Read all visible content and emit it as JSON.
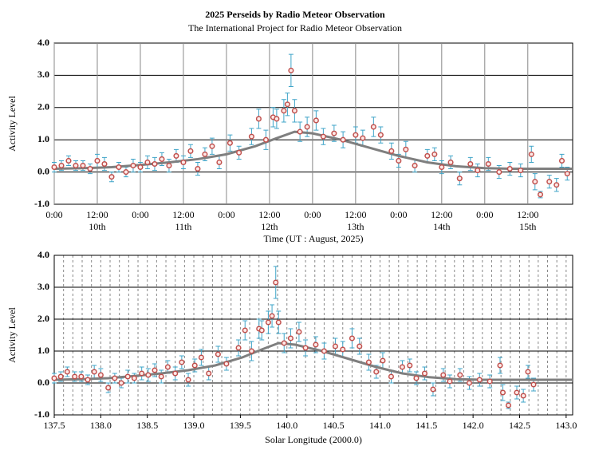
{
  "chart_data": [
    {
      "type": "scatter",
      "title": "2025 Perseids by Radio Meteor Observation",
      "subtitle": "The International Project for Radio Meteor Observation",
      "xlabel": "Time (UT : August, 2025)",
      "ylabel": "Activity Level",
      "xlim": [
        0,
        144.5
      ],
      "ylim": [
        -1,
        4
      ],
      "xticks": [
        {
          "value": 0,
          "label": "0:00"
        },
        {
          "value": 12,
          "label": "12:00"
        },
        {
          "value": 24,
          "label": "0:00"
        },
        {
          "value": 36,
          "label": "12:00"
        },
        {
          "value": 48,
          "label": "0:00"
        },
        {
          "value": 60,
          "label": "12:00"
        },
        {
          "value": 72,
          "label": "0:00"
        },
        {
          "value": 84,
          "label": "12:00"
        },
        {
          "value": 96,
          "label": "0:00"
        },
        {
          "value": 108,
          "label": "12:00"
        },
        {
          "value": 120,
          "label": "0:00"
        },
        {
          "value": 132,
          "label": "12:00"
        }
      ],
      "day_labels": [
        {
          "value": 12,
          "label": "10th"
        },
        {
          "value": 36,
          "label": "11th"
        },
        {
          "value": 60,
          "label": "12th"
        },
        {
          "value": 84,
          "label": "13th"
        },
        {
          "value": 108,
          "label": "14th"
        },
        {
          "value": 132,
          "label": "15th"
        }
      ],
      "yticks": [
        {
          "value": -1,
          "label": "-1.0"
        },
        {
          "value": 0,
          "label": "0.0"
        },
        {
          "value": 1,
          "label": "1.0"
        },
        {
          "value": 2,
          "label": "2.0"
        },
        {
          "value": 3,
          "label": "3.0"
        },
        {
          "value": 4,
          "label": "4.0"
        }
      ],
      "grid": true,
      "points": {
        "color": "#c0504d",
        "error_color": "#3fa4c8",
        "x": [
          0,
          2,
          4,
          6,
          8,
          10,
          12,
          14,
          16,
          18,
          20,
          22,
          24,
          26,
          28,
          30,
          32,
          34,
          36,
          38,
          40,
          42,
          44,
          46,
          49,
          51.5,
          55,
          57,
          59,
          61,
          62,
          64,
          65,
          66,
          67,
          68.5,
          70.5,
          73,
          75,
          78,
          80.5,
          84,
          86,
          89,
          91,
          94,
          96,
          98,
          100.5,
          104,
          106,
          108,
          110.5,
          113,
          116,
          118,
          121,
          124,
          127,
          130,
          133,
          134,
          135.5,
          138,
          140,
          141.5,
          143
        ],
        "values": [
          0.15,
          0.2,
          0.35,
          0.2,
          0.2,
          0.1,
          0.35,
          0.25,
          -0.15,
          0.15,
          0.0,
          0.2,
          0.15,
          0.3,
          0.25,
          0.4,
          0.2,
          0.5,
          0.3,
          0.65,
          0.1,
          0.55,
          0.8,
          0.3,
          0.9,
          0.6,
          1.1,
          1.65,
          1.0,
          1.7,
          1.65,
          1.9,
          2.1,
          3.15,
          1.9,
          1.25,
          1.4,
          1.6,
          1.1,
          1.2,
          1.0,
          1.15,
          1.05,
          1.4,
          1.15,
          0.65,
          0.35,
          0.7,
          0.2,
          0.5,
          0.55,
          0.15,
          0.3,
          -0.2,
          0.25,
          0.05,
          0.25,
          0.0,
          0.1,
          0.05,
          0.55,
          -0.3,
          -0.7,
          -0.3,
          -0.4,
          0.35,
          -0.05
        ],
        "errors": [
          0.15,
          0.15,
          0.15,
          0.15,
          0.15,
          0.15,
          0.2,
          0.2,
          0.15,
          0.15,
          0.15,
          0.2,
          0.15,
          0.2,
          0.2,
          0.2,
          0.2,
          0.2,
          0.2,
          0.2,
          0.2,
          0.2,
          0.25,
          0.2,
          0.25,
          0.2,
          0.25,
          0.3,
          0.3,
          0.3,
          0.3,
          0.35,
          0.35,
          0.5,
          0.35,
          0.3,
          0.3,
          0.3,
          0.25,
          0.25,
          0.25,
          0.25,
          0.25,
          0.3,
          0.25,
          0.25,
          0.2,
          0.25,
          0.2,
          0.2,
          0.2,
          0.2,
          0.2,
          0.2,
          0.2,
          0.2,
          0.2,
          0.2,
          0.2,
          0.2,
          0.25,
          0.25,
          0.1,
          0.2,
          0.2,
          0.2,
          0.2
        ]
      },
      "fit": {
        "color": "#7f7f7f",
        "x": [
          0,
          8,
          16,
          24,
          32,
          40,
          48,
          56,
          62,
          67,
          72,
          80,
          88,
          96,
          104,
          112,
          120,
          128,
          144.5
        ],
        "values": [
          0.1,
          0.12,
          0.15,
          0.22,
          0.3,
          0.4,
          0.55,
          0.8,
          1.05,
          1.25,
          1.2,
          1.0,
          0.75,
          0.5,
          0.3,
          0.18,
          0.12,
          0.1,
          0.1
        ]
      }
    },
    {
      "type": "scatter",
      "xlabel": "Solar Longitude (2000.0)",
      "ylabel": "Activity Level",
      "xlim": [
        137.5,
        143.07
      ],
      "ylim": [
        -1,
        4
      ],
      "xticks": [
        137.5,
        {
          "value": 138,
          "label": "138.0"
        },
        138.5,
        {
          "value": 139,
          "label": "139.0"
        },
        139.5,
        {
          "value": 140,
          "label": "140.0"
        },
        140.5,
        {
          "value": 141,
          "label": "141.0"
        },
        141.5,
        {
          "value": 142,
          "label": "142.0"
        },
        142.5,
        {
          "value": 143,
          "label": "143.0"
        }
      ],
      "yticks": [
        {
          "value": -1,
          "label": "-1.0"
        },
        {
          "value": 0,
          "label": "0.0"
        },
        {
          "value": 1,
          "label": "1.0"
        },
        {
          "value": 2,
          "label": "2.0"
        },
        {
          "value": 3,
          "label": "3.0"
        },
        {
          "value": 4,
          "label": "4.0"
        }
      ],
      "grid": true,
      "minor_xgrid_step": 0.1,
      "points": {
        "color": "#c0504d",
        "error_color": "#3fa4c8",
        "x": [
          137.5,
          137.57,
          137.64,
          137.72,
          137.79,
          137.86,
          137.93,
          138.0,
          138.08,
          138.15,
          138.22,
          138.29,
          138.36,
          138.44,
          138.51,
          138.58,
          138.65,
          138.72,
          138.8,
          138.87,
          138.94,
          139.01,
          139.08,
          139.16,
          139.26,
          139.35,
          139.48,
          139.55,
          139.62,
          139.7,
          139.73,
          139.8,
          139.84,
          139.88,
          139.91,
          139.97,
          140.04,
          140.13,
          140.2,
          140.31,
          140.4,
          140.52,
          140.6,
          140.7,
          140.78,
          140.88,
          140.96,
          141.03,
          141.12,
          141.24,
          141.32,
          141.39,
          141.48,
          141.57,
          141.68,
          141.75,
          141.86,
          141.96,
          142.07,
          142.18,
          142.29,
          142.32,
          142.38,
          142.47,
          142.54,
          142.59,
          142.65
        ],
        "values": [
          0.15,
          0.2,
          0.35,
          0.2,
          0.2,
          0.1,
          0.35,
          0.25,
          -0.15,
          0.15,
          0.0,
          0.2,
          0.15,
          0.3,
          0.25,
          0.4,
          0.2,
          0.5,
          0.3,
          0.65,
          0.1,
          0.55,
          0.8,
          0.3,
          0.9,
          0.6,
          1.1,
          1.65,
          1.0,
          1.7,
          1.65,
          1.9,
          2.1,
          3.15,
          1.9,
          1.25,
          1.4,
          1.6,
          1.1,
          1.2,
          1.0,
          1.15,
          1.05,
          1.4,
          1.15,
          0.65,
          0.35,
          0.7,
          0.2,
          0.5,
          0.55,
          0.15,
          0.3,
          -0.2,
          0.25,
          0.05,
          0.25,
          0.0,
          0.1,
          0.05,
          0.55,
          -0.3,
          -0.7,
          -0.3,
          -0.4,
          0.35,
          -0.05
        ],
        "errors": [
          0.15,
          0.15,
          0.15,
          0.15,
          0.15,
          0.15,
          0.2,
          0.2,
          0.15,
          0.15,
          0.15,
          0.2,
          0.15,
          0.2,
          0.2,
          0.2,
          0.2,
          0.2,
          0.2,
          0.2,
          0.2,
          0.2,
          0.25,
          0.2,
          0.25,
          0.2,
          0.25,
          0.3,
          0.3,
          0.3,
          0.3,
          0.35,
          0.35,
          0.5,
          0.35,
          0.3,
          0.3,
          0.3,
          0.25,
          0.25,
          0.25,
          0.25,
          0.25,
          0.3,
          0.25,
          0.25,
          0.2,
          0.25,
          0.2,
          0.2,
          0.2,
          0.2,
          0.2,
          0.2,
          0.2,
          0.2,
          0.2,
          0.2,
          0.2,
          0.2,
          0.25,
          0.25,
          0.1,
          0.2,
          0.2,
          0.2,
          0.2
        ]
      },
      "fit": {
        "color": "#7f7f7f",
        "x": [
          137.5,
          137.79,
          138.08,
          138.36,
          138.65,
          138.94,
          139.23,
          139.52,
          139.73,
          139.91,
          140.09,
          140.38,
          140.67,
          140.96,
          141.24,
          141.53,
          141.82,
          142.11,
          143.07
        ],
        "values": [
          0.1,
          0.12,
          0.15,
          0.22,
          0.3,
          0.4,
          0.55,
          0.8,
          1.05,
          1.25,
          1.2,
          1.0,
          0.75,
          0.5,
          0.3,
          0.18,
          0.12,
          0.1,
          0.1
        ]
      }
    }
  ]
}
